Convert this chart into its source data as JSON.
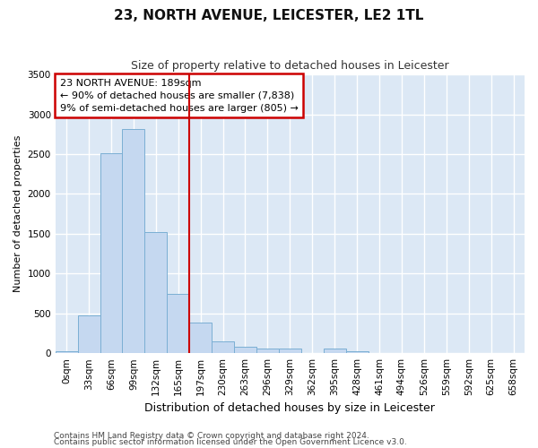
{
  "title": "23, NORTH AVENUE, LEICESTER, LE2 1TL",
  "subtitle": "Size of property relative to detached houses in Leicester",
  "xlabel": "Distribution of detached houses by size in Leicester",
  "ylabel": "Number of detached properties",
  "footnote1": "Contains HM Land Registry data © Crown copyright and database right 2024.",
  "footnote2": "Contains public sector information licensed under the Open Government Licence v3.0.",
  "bar_labels": [
    "0sqm",
    "33sqm",
    "66sqm",
    "99sqm",
    "132sqm",
    "165sqm",
    "197sqm",
    "230sqm",
    "263sqm",
    "296sqm",
    "329sqm",
    "362sqm",
    "395sqm",
    "428sqm",
    "461sqm",
    "494sqm",
    "526sqm",
    "559sqm",
    "592sqm",
    "625sqm",
    "658sqm"
  ],
  "bar_values": [
    20,
    470,
    2510,
    2820,
    1520,
    750,
    385,
    145,
    80,
    55,
    55,
    0,
    55,
    20,
    0,
    0,
    0,
    0,
    0,
    0,
    0
  ],
  "bar_color": "#c5d8f0",
  "bar_edge_color": "#7bafd4",
  "fig_bg_color": "#ffffff",
  "ax_bg_color": "#dce8f5",
  "grid_color": "#ffffff",
  "vline_x": 6.0,
  "vline_color": "#cc0000",
  "annotation_title": "23 NORTH AVENUE: 189sqm",
  "annotation_line2": "← 90% of detached houses are smaller (7,838)",
  "annotation_line3": "9% of semi-detached houses are larger (805) →",
  "annotation_box_color": "#cc0000",
  "annotation_bg": "#ffffff",
  "ylim": [
    0,
    3500
  ],
  "yticks": [
    0,
    500,
    1000,
    1500,
    2000,
    2500,
    3000,
    3500
  ],
  "title_fontsize": 11,
  "subtitle_fontsize": 9,
  "ylabel_fontsize": 8,
  "xlabel_fontsize": 9,
  "tick_fontsize": 7.5,
  "annot_fontsize": 8,
  "footnote_fontsize": 6.5
}
